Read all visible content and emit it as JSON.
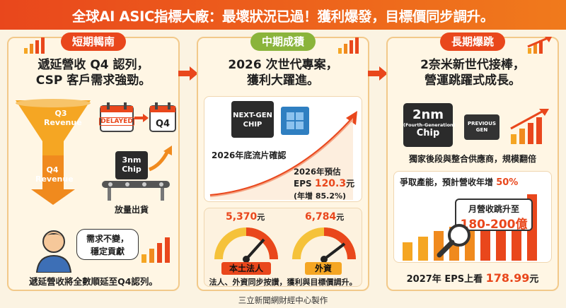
{
  "title": "全球AI ASIC指標大廠：最壞狀況已過！獲利爆發，目標價同步調升。",
  "panel1": {
    "header": "短期輵南",
    "subtitle_line1": "遞延營收 Q4 認列，",
    "subtitle_line2": "CSP 客戶需求強勁。",
    "funnel_top_label": "Q3 Revenue",
    "delayed_label": "DELAYED",
    "q4_box": "Q4",
    "funnel_bottom_label": "Q4 Revenue",
    "chip_label": "3nm Chip",
    "conveyor_caption": "放量出貨",
    "bubble_line1": "需求不變，",
    "bubble_line2": "穩定貢獻",
    "bottom_text": "遞延營收將全數順延至Q4認列。"
  },
  "panel2": {
    "header": "中期成積",
    "subtitle_line1": "2026 次世代專案，",
    "subtitle_line2": "獲利大躍進。",
    "chip_label": "NEXT-GEN CHIP",
    "tapeout_text": "2026年底流片確認",
    "eps_line1": "2026年預估",
    "eps_prefix": "EPS",
    "eps_value": "120.3",
    "eps_unit": "元",
    "eps_growth": "(年增 85.2%)"
  },
  "panel2b": {
    "left_price": "5,370",
    "left_unit": "元",
    "left_label": "本土法人",
    "right_price": "6,784",
    "right_unit": "元",
    "right_label": "外資",
    "bottom_text": "法人、外資同步按讚，獲利與目標價調升。"
  },
  "panel3": {
    "header": "長期爆跳",
    "subtitle_line1": "2奈米新世代接棒，",
    "subtitle_line2": "營運跳躍式成長。",
    "chip_line1": "2nm",
    "chip_line2": "(Fourth-Generation)",
    "chip_line3": "Chip",
    "prev_chip_line1": "PREVIOUS",
    "prev_chip_line2": "GEN",
    "exclusive_text": "獨家後段與整合供應商，規模翻倍",
    "capacity_text": "爭取產能，預計營收年增",
    "capacity_pct": "50%",
    "monthly_line1": "月營收跳升至",
    "monthly_line2": "180-200億",
    "eps_text": "2027年 EPS上看",
    "eps_value": "178.99",
    "eps_unit": "元"
  },
  "footer": "三立新聞網財經中心製作",
  "colors": {
    "accent": "#e9471c",
    "green": "#8ab43b",
    "orange": "#f08a1e",
    "panel": "#fff6e4"
  }
}
